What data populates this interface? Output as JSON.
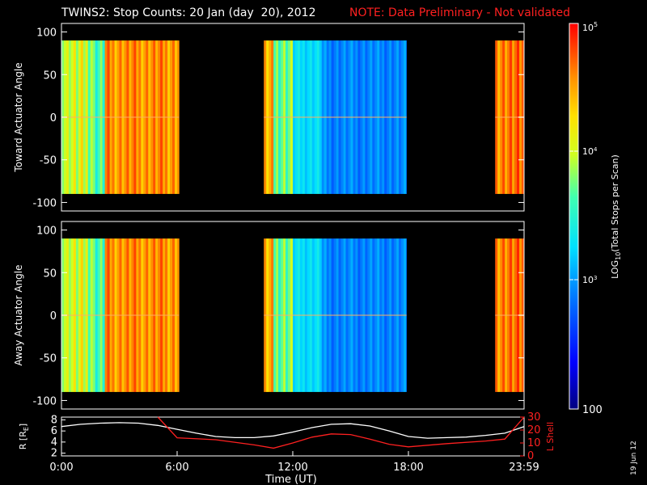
{
  "header": {
    "title": "TWINS2: Stop Counts: 20 Jan (day  20), 2012",
    "note": "NOTE: Data Preliminary - Not validated"
  },
  "date_stamp": "19 Jun 12",
  "colors": {
    "background": "#000000",
    "axes": "#ffffff",
    "note": "#ff2020",
    "lshell": "#ff2020",
    "radius": "#ffffff"
  },
  "chart_data": [
    {
      "type": "heatmap",
      "name": "toward",
      "ylabel": "Toward Actuator Angle",
      "ylim": [
        -110,
        110
      ],
      "yticks": [
        100,
        50,
        0,
        -50,
        -100
      ],
      "data_range": [
        -90,
        90
      ],
      "x_hours": [
        0,
        24
      ],
      "data_segments": [
        [
          0,
          6.1
        ],
        [
          10.5,
          17.9
        ],
        [
          22.5,
          24
        ]
      ],
      "note": "log counts: ~high (orange/red) 0-6 UT, blue-cyan (~2e2-1e3) 12-18 UT"
    },
    {
      "type": "heatmap",
      "name": "away",
      "ylabel": "Away Actuator Angle",
      "ylim": [
        -110,
        110
      ],
      "yticks": [
        100,
        50,
        0,
        -50,
        -100
      ],
      "data_range": [
        -90,
        90
      ],
      "x_hours": [
        0,
        24
      ],
      "data_segments": [
        [
          0,
          6.1
        ],
        [
          10.5,
          17.9
        ],
        [
          22.5,
          24
        ]
      ]
    },
    {
      "type": "line",
      "name": "orbit",
      "xlabel": "Time (UT)",
      "xticks": [
        "0:00",
        "6:00",
        "12:00",
        "18:00",
        "23:59"
      ],
      "xtick_hours": [
        0,
        6,
        12,
        18,
        24
      ],
      "left_axis": {
        "label": "R [R",
        "label_sub": "E",
        "label_end": "]",
        "ylim": [
          1.5,
          8.5
        ],
        "ticks": [
          8,
          6,
          4,
          2
        ]
      },
      "right_axis": {
        "label": "L Shell",
        "ylim": [
          0,
          30
        ],
        "ticks": [
          30,
          20,
          10,
          0
        ]
      },
      "series": [
        {
          "name": "R",
          "axis": "left",
          "x": [
            0,
            1,
            2,
            3,
            4,
            5,
            6,
            7,
            8,
            9,
            10,
            11,
            12,
            13,
            14,
            15,
            16,
            17,
            18,
            19,
            20,
            21,
            22,
            23,
            24
          ],
          "y": [
            6.8,
            7.2,
            7.4,
            7.5,
            7.4,
            7.0,
            6.3,
            5.6,
            5.0,
            4.8,
            4.8,
            5.1,
            5.8,
            6.6,
            7.2,
            7.3,
            6.9,
            6.0,
            5.0,
            4.7,
            4.8,
            4.9,
            5.2,
            5.6,
            6.8
          ]
        },
        {
          "name": "L Shell",
          "axis": "right",
          "x": [
            5,
            6,
            8,
            10,
            11,
            12,
            13,
            14,
            15,
            16,
            17,
            18,
            20,
            22,
            23,
            24
          ],
          "y": [
            30,
            14,
            12.5,
            8.5,
            6,
            10,
            14.5,
            17,
            16.5,
            13,
            9,
            7,
            9.5,
            11.5,
            13,
            30
          ]
        }
      ]
    }
  ],
  "colorbar": {
    "label_pre": "LOG",
    "label_sub": "10",
    "label_post": "(Total Stops per Scan)",
    "tick_top": "10",
    "tick_top_exp": "5",
    "tick_mid": "10",
    "tick_mid_exp": "4",
    "tick_low": "10",
    "tick_low_exp": "3",
    "tick_bottom": "100",
    "range": [
      100,
      100000
    ]
  }
}
